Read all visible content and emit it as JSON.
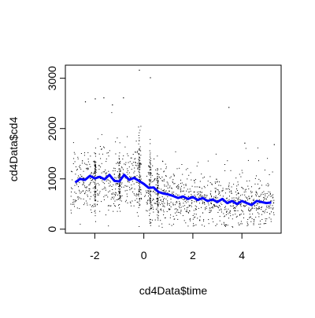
{
  "chart_data": {
    "type": "scatter",
    "title": "",
    "xlabel": "cd4Data$time",
    "ylabel": "cd4Data$cd4",
    "xlim": [
      -3.2,
      5.6
    ],
    "ylim": [
      -80,
      3260
    ],
    "x_ticks": [
      -2,
      0,
      2,
      4
    ],
    "y_ticks": [
      0,
      1000,
      2000,
      3000
    ],
    "x_tick_labels": [
      "-2",
      "0",
      "2",
      "4"
    ],
    "y_tick_labels": [
      "0",
      "1000",
      "2000",
      "3000"
    ],
    "grid": false,
    "legend": "none",
    "point_color": "#000000",
    "line_color": "#0000ff",
    "highlighted_points": [
      {
        "x": -0.2,
        "y": 3170
      },
      {
        "x": 0.25,
        "y": 3020
      },
      {
        "x": -1.65,
        "y": 2620
      },
      {
        "x": -2.0,
        "y": 2600
      },
      {
        "x": -2.4,
        "y": 2540
      },
      {
        "x": -0.85,
        "y": 2620
      },
      {
        "x": -1.3,
        "y": 2480
      },
      {
        "x": 3.45,
        "y": 2430
      },
      {
        "x": 5.3,
        "y": 1690
      },
      {
        "x": 4.1,
        "y": 1720
      }
    ],
    "point_bands": [
      {
        "x_range": [
          -3.0,
          -2.0
        ],
        "y_mean": 900,
        "y_spread": 300
      },
      {
        "x_range": [
          -2.0,
          -1.0
        ],
        "y_mean": 960,
        "y_spread": 320
      },
      {
        "x_range": [
          -1.0,
          -0.1
        ],
        "y_mean": 980,
        "y_spread": 350
      },
      {
        "x_range": [
          0.0,
          1.0
        ],
        "y_mean": 700,
        "y_spread": 280
      },
      {
        "x_range": [
          1.0,
          2.0
        ],
        "y_mean": 620,
        "y_spread": 260
      },
      {
        "x_range": [
          2.0,
          3.0
        ],
        "y_mean": 580,
        "y_spread": 250
      },
      {
        "x_range": [
          3.0,
          4.0
        ],
        "y_mean": 540,
        "y_spread": 240
      },
      {
        "x_range": [
          4.0,
          5.3
        ],
        "y_mean": 520,
        "y_spread": 230
      }
    ],
    "smooth_line": [
      {
        "x": -2.8,
        "y": 930
      },
      {
        "x": -2.6,
        "y": 1000
      },
      {
        "x": -2.4,
        "y": 980
      },
      {
        "x": -2.2,
        "y": 1060
      },
      {
        "x": -2.0,
        "y": 1010
      },
      {
        "x": -1.8,
        "y": 1040
      },
      {
        "x": -1.6,
        "y": 990
      },
      {
        "x": -1.4,
        "y": 1080
      },
      {
        "x": -1.2,
        "y": 960
      },
      {
        "x": -1.0,
        "y": 950
      },
      {
        "x": -0.8,
        "y": 1080
      },
      {
        "x": -0.6,
        "y": 980
      },
      {
        "x": -0.4,
        "y": 1020
      },
      {
        "x": -0.2,
        "y": 960
      },
      {
        "x": 0.0,
        "y": 900
      },
      {
        "x": 0.2,
        "y": 820
      },
      {
        "x": 0.4,
        "y": 830
      },
      {
        "x": 0.6,
        "y": 740
      },
      {
        "x": 0.8,
        "y": 710
      },
      {
        "x": 1.0,
        "y": 690
      },
      {
        "x": 1.2,
        "y": 660
      },
      {
        "x": 1.4,
        "y": 620
      },
      {
        "x": 1.6,
        "y": 650
      },
      {
        "x": 1.8,
        "y": 600
      },
      {
        "x": 2.0,
        "y": 640
      },
      {
        "x": 2.2,
        "y": 580
      },
      {
        "x": 2.4,
        "y": 620
      },
      {
        "x": 2.6,
        "y": 560
      },
      {
        "x": 2.8,
        "y": 590
      },
      {
        "x": 3.0,
        "y": 540
      },
      {
        "x": 3.2,
        "y": 600
      },
      {
        "x": 3.4,
        "y": 520
      },
      {
        "x": 3.6,
        "y": 560
      },
      {
        "x": 3.8,
        "y": 500
      },
      {
        "x": 4.0,
        "y": 560
      },
      {
        "x": 4.2,
        "y": 520
      },
      {
        "x": 4.4,
        "y": 480
      },
      {
        "x": 4.6,
        "y": 560
      },
      {
        "x": 4.8,
        "y": 540
      },
      {
        "x": 5.0,
        "y": 520
      },
      {
        "x": 5.2,
        "y": 530
      }
    ]
  }
}
